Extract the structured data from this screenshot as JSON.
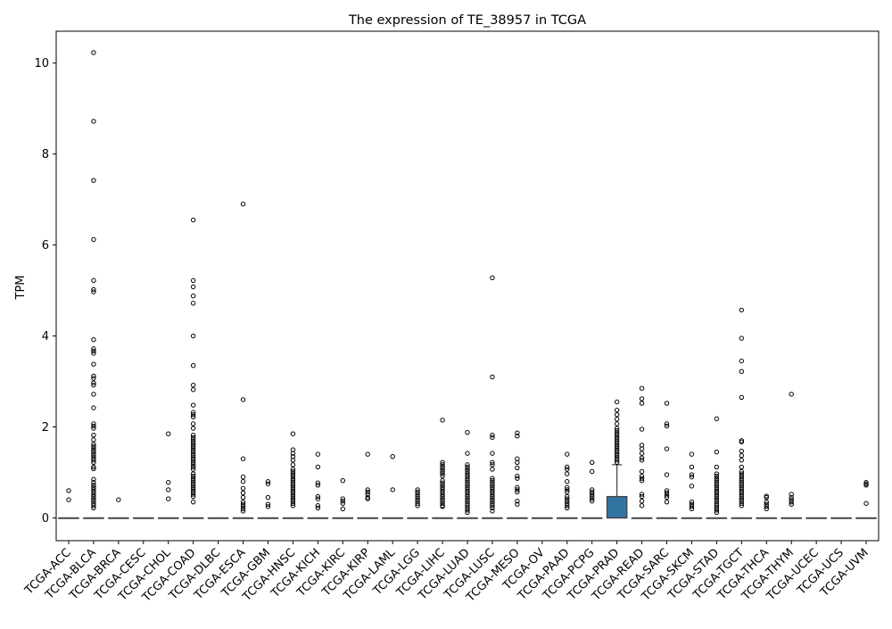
{
  "chart_data": {
    "type": "box",
    "title": "The expression of TE_38957 in TCGA",
    "xlabel": "",
    "ylabel": "TPM",
    "ylim": [
      -0.5,
      10.7
    ],
    "yticks": [
      0,
      2,
      4,
      6,
      8,
      10
    ],
    "grid": false,
    "box_color": "#3274a1",
    "categories": [
      "TCGA-ACC",
      "TCGA-BLCA",
      "TCGA-BRCA",
      "TCGA-CESC",
      "TCGA-CHOL",
      "TCGA-COAD",
      "TCGA-DLBC",
      "TCGA-ESCA",
      "TCGA-GBM",
      "TCGA-HNSC",
      "TCGA-KICH",
      "TCGA-KIRC",
      "TCGA-KIRP",
      "TCGA-LAML",
      "TCGA-LGG",
      "TCGA-LIHC",
      "TCGA-LUAD",
      "TCGA-LUSC",
      "TCGA-MESO",
      "TCGA-OV",
      "TCGA-PAAD",
      "TCGA-PCPG",
      "TCGA-PRAD",
      "TCGA-READ",
      "TCGA-SARC",
      "TCGA-SKCM",
      "TCGA-STAD",
      "TCGA-TGCT",
      "TCGA-THCA",
      "TCGA-THYM",
      "TCGA-UCEC",
      "TCGA-UCS",
      "TCGA-UVM"
    ],
    "boxes": [
      {
        "q1": 0,
        "median": 0,
        "q3": 0,
        "whisker_low": 0,
        "whisker_high": 0
      },
      {
        "q1": 0,
        "median": 0,
        "q3": 0,
        "whisker_low": 0,
        "whisker_high": 0
      },
      {
        "q1": 0,
        "median": 0,
        "q3": 0,
        "whisker_low": 0,
        "whisker_high": 0
      },
      {
        "q1": 0,
        "median": 0,
        "q3": 0,
        "whisker_low": 0,
        "whisker_high": 0
      },
      {
        "q1": 0,
        "median": 0,
        "q3": 0,
        "whisker_low": 0,
        "whisker_high": 0
      },
      {
        "q1": 0,
        "median": 0,
        "q3": 0,
        "whisker_low": 0,
        "whisker_high": 0
      },
      {
        "q1": 0,
        "median": 0,
        "q3": 0,
        "whisker_low": 0,
        "whisker_high": 0
      },
      {
        "q1": 0,
        "median": 0,
        "q3": 0,
        "whisker_low": 0,
        "whisker_high": 0
      },
      {
        "q1": 0,
        "median": 0,
        "q3": 0,
        "whisker_low": 0,
        "whisker_high": 0
      },
      {
        "q1": 0,
        "median": 0,
        "q3": 0,
        "whisker_low": 0,
        "whisker_high": 0
      },
      {
        "q1": 0,
        "median": 0,
        "q3": 0,
        "whisker_low": 0,
        "whisker_high": 0
      },
      {
        "q1": 0,
        "median": 0,
        "q3": 0,
        "whisker_low": 0,
        "whisker_high": 0
      },
      {
        "q1": 0,
        "median": 0,
        "q3": 0,
        "whisker_low": 0,
        "whisker_high": 0
      },
      {
        "q1": 0,
        "median": 0,
        "q3": 0,
        "whisker_low": 0,
        "whisker_high": 0
      },
      {
        "q1": 0,
        "median": 0,
        "q3": 0,
        "whisker_low": 0,
        "whisker_high": 0
      },
      {
        "q1": 0,
        "median": 0,
        "q3": 0,
        "whisker_low": 0,
        "whisker_high": 0
      },
      {
        "q1": 0,
        "median": 0,
        "q3": 0,
        "whisker_low": 0,
        "whisker_high": 0
      },
      {
        "q1": 0,
        "median": 0,
        "q3": 0,
        "whisker_low": 0,
        "whisker_high": 0
      },
      {
        "q1": 0,
        "median": 0,
        "q3": 0,
        "whisker_low": 0,
        "whisker_high": 0
      },
      {
        "q1": 0,
        "median": 0,
        "q3": 0,
        "whisker_low": 0,
        "whisker_high": 0
      },
      {
        "q1": 0,
        "median": 0,
        "q3": 0,
        "whisker_low": 0,
        "whisker_high": 0
      },
      {
        "q1": 0,
        "median": 0,
        "q3": 0,
        "whisker_low": 0,
        "whisker_high": 0
      },
      {
        "q1": 0,
        "median": 0,
        "q3": 0.47,
        "whisker_low": 0,
        "whisker_high": 1.17
      },
      {
        "q1": 0,
        "median": 0,
        "q3": 0,
        "whisker_low": 0,
        "whisker_high": 0
      },
      {
        "q1": 0,
        "median": 0,
        "q3": 0,
        "whisker_low": 0,
        "whisker_high": 0
      },
      {
        "q1": 0,
        "median": 0,
        "q3": 0,
        "whisker_low": 0,
        "whisker_high": 0
      },
      {
        "q1": 0,
        "median": 0,
        "q3": 0,
        "whisker_low": 0,
        "whisker_high": 0
      },
      {
        "q1": 0,
        "median": 0,
        "q3": 0,
        "whisker_low": 0,
        "whisker_high": 0
      },
      {
        "q1": 0,
        "median": 0,
        "q3": 0,
        "whisker_low": 0,
        "whisker_high": 0
      },
      {
        "q1": 0,
        "median": 0,
        "q3": 0,
        "whisker_low": 0,
        "whisker_high": 0
      },
      {
        "q1": 0,
        "median": 0,
        "q3": 0,
        "whisker_low": 0,
        "whisker_high": 0
      },
      {
        "q1": 0,
        "median": 0,
        "q3": 0,
        "whisker_low": 0,
        "whisker_high": 0
      },
      {
        "q1": 0,
        "median": 0,
        "q3": 0,
        "whisker_low": 0,
        "whisker_high": 0
      }
    ],
    "outliers": [
      [
        0.6,
        0.4
      ],
      [
        10.23,
        8.72,
        7.42,
        6.12,
        5.22,
        5.02,
        4.97,
        3.92,
        3.72,
        3.67,
        3.62,
        3.38,
        3.12,
        3.07,
        2.97,
        2.92,
        2.72,
        2.42,
        2.07,
        2.02,
        1.97,
        1.82,
        1.72,
        1.62,
        1.57,
        1.52,
        1.47,
        1.42,
        1.37,
        1.32,
        1.27,
        1.22,
        1.12,
        1.08,
        0.85,
        0.78,
        0.72,
        0.67,
        0.62,
        0.57,
        0.52,
        0.47,
        0.42,
        0.37,
        0.32,
        0.27,
        0.22
      ],
      [
        0.4
      ],
      [],
      [
        1.85,
        0.78,
        0.62,
        0.42
      ],
      [
        6.55,
        5.22,
        5.08,
        4.88,
        4.72,
        4.0,
        3.35,
        2.92,
        2.82,
        2.48,
        2.32,
        2.27,
        2.22,
        2.07,
        1.97,
        1.82,
        1.77,
        1.72,
        1.67,
        1.62,
        1.57,
        1.52,
        1.47,
        1.42,
        1.37,
        1.32,
        1.27,
        1.22,
        1.17,
        1.12,
        1.07,
        0.97,
        0.92,
        0.87,
        0.82,
        0.77,
        0.72,
        0.67,
        0.62,
        0.57,
        0.52,
        0.47,
        0.35
      ],
      [],
      [
        6.9,
        2.6,
        1.3,
        0.9,
        0.8,
        0.65,
        0.55,
        0.45,
        0.35,
        0.3,
        0.25,
        0.2,
        0.15
      ],
      [
        0.8,
        0.75,
        0.45,
        0.3,
        0.25
      ],
      [
        1.85,
        1.5,
        1.42,
        1.35,
        1.27,
        1.17,
        1.07,
        1.02,
        0.97,
        0.92,
        0.87,
        0.82,
        0.77,
        0.72,
        0.67,
        0.62,
        0.57,
        0.52,
        0.47,
        0.42,
        0.37,
        0.32,
        0.27
      ],
      [
        1.4,
        1.12,
        0.77,
        0.72,
        0.47,
        0.42,
        0.27,
        0.22
      ],
      [
        0.82,
        0.42,
        0.37,
        0.32,
        0.2
      ],
      [
        1.4,
        0.62,
        0.57,
        0.52,
        0.45,
        0.42
      ],
      [
        1.35,
        0.62
      ],
      [
        0.62,
        0.57,
        0.52,
        0.47,
        0.42,
        0.37,
        0.32,
        0.27
      ],
      [
        2.15,
        1.22,
        1.17,
        1.12,
        1.07,
        1.02,
        0.97,
        0.92,
        0.82,
        0.77,
        0.72,
        0.67,
        0.62,
        0.57,
        0.52,
        0.47,
        0.42,
        0.37,
        0.32,
        0.27,
        0.25
      ],
      [
        1.88,
        1.42,
        1.17,
        1.12,
        1.07,
        1.02,
        0.97,
        0.92,
        0.87,
        0.82,
        0.77,
        0.72,
        0.67,
        0.62,
        0.57,
        0.52,
        0.47,
        0.42,
        0.37,
        0.32,
        0.27,
        0.22,
        0.17,
        0.12
      ],
      [
        5.28,
        3.1,
        1.82,
        1.77,
        1.42,
        1.22,
        1.17,
        1.07,
        0.87,
        0.82,
        0.77,
        0.72,
        0.67,
        0.62,
        0.57,
        0.52,
        0.47,
        0.42,
        0.37,
        0.32,
        0.27,
        0.22,
        0.15
      ],
      [
        1.87,
        1.8,
        1.3,
        1.22,
        1.1,
        0.92,
        0.87,
        0.67,
        0.62,
        0.57,
        0.37,
        0.3
      ],
      [],
      [
        1.4,
        1.12,
        1.07,
        0.97,
        0.8,
        0.67,
        0.62,
        0.57,
        0.47,
        0.42,
        0.37,
        0.32,
        0.27,
        0.22
      ],
      [
        1.22,
        1.02,
        0.62,
        0.57,
        0.52,
        0.47,
        0.42,
        0.37
      ],
      [
        2.55,
        2.37,
        2.27,
        2.17,
        2.07,
        1.97,
        1.92,
        1.87,
        1.82,
        1.77,
        1.72,
        1.67,
        1.62,
        1.57,
        1.52,
        1.47,
        1.42,
        1.37,
        1.32,
        1.27,
        1.22
      ],
      [
        2.85,
        2.62,
        2.52,
        1.95,
        1.6,
        1.52,
        1.42,
        1.32,
        1.27,
        1.02,
        0.92,
        0.87,
        0.82,
        0.52,
        0.47,
        0.37,
        0.27
      ],
      [
        2.52,
        2.07,
        2.02,
        1.52,
        0.95,
        0.6,
        0.55,
        0.5,
        0.45,
        0.35
      ],
      [
        1.4,
        1.12,
        0.95,
        0.9,
        0.7,
        0.35,
        0.3,
        0.25,
        0.2
      ],
      [
        2.18,
        1.45,
        1.12,
        0.97,
        0.92,
        0.87,
        0.82,
        0.77,
        0.72,
        0.67,
        0.62,
        0.57,
        0.52,
        0.47,
        0.42,
        0.37,
        0.32,
        0.27,
        0.22,
        0.17,
        0.12
      ],
      [
        4.57,
        3.95,
        3.45,
        3.22,
        2.65,
        1.7,
        1.67,
        1.47,
        1.37,
        1.27,
        1.12,
        1.02,
        0.97,
        0.92,
        0.87,
        0.82,
        0.77,
        0.72,
        0.67,
        0.62,
        0.57,
        0.52,
        0.47,
        0.42,
        0.37,
        0.32,
        0.27
      ],
      [
        0.48,
        0.45,
        0.35,
        0.3,
        0.25,
        0.2
      ],
      [
        2.72,
        0.52,
        0.45,
        0.4,
        0.35,
        0.3
      ],
      [],
      [],
      [
        0.78,
        0.75,
        0.72,
        0.32
      ]
    ]
  }
}
